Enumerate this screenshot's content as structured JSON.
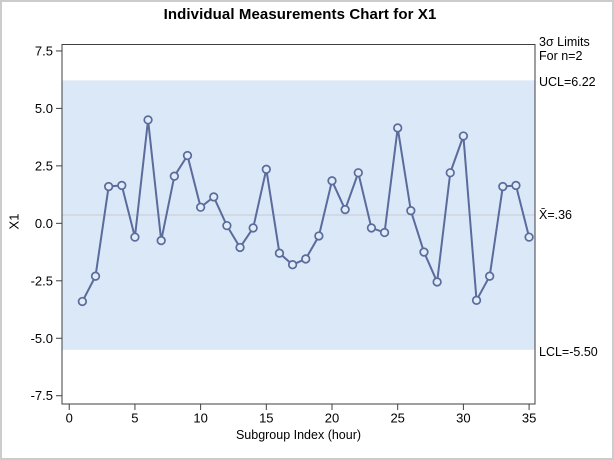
{
  "chart_data": {
    "type": "line",
    "title": "Individual Measurements Chart for X1",
    "xlabel": "Subgroup Index (hour)",
    "ylabel": "X1",
    "x": [
      1,
      2,
      3,
      4,
      5,
      6,
      7,
      8,
      9,
      10,
      11,
      12,
      13,
      14,
      15,
      16,
      17,
      18,
      19,
      20,
      21,
      22,
      23,
      24,
      25,
      26,
      27,
      28,
      29,
      30,
      31,
      32,
      33,
      34,
      35
    ],
    "values": [
      -3.4,
      -2.3,
      1.6,
      1.65,
      -0.6,
      4.5,
      -0.75,
      2.05,
      2.95,
      0.7,
      1.15,
      -0.1,
      -1.05,
      -0.2,
      2.35,
      -1.3,
      -1.8,
      -1.55,
      -0.55,
      1.85,
      0.6,
      2.2,
      -0.2,
      -0.4,
      4.15,
      0.55,
      -1.25,
      -2.55,
      2.2,
      3.8,
      -3.35,
      -2.3,
      1.6,
      1.65,
      -0.6
    ],
    "center_line": 0.36,
    "ucl": 6.22,
    "lcl": -5.5,
    "sigma_note": [
      "3σ Limits",
      "For n=2"
    ],
    "labels": {
      "ucl": "UCL=6.22",
      "mean": "X̄=.36",
      "lcl": "LCL=-5.50"
    },
    "yticks": [
      {
        "value": 7.5,
        "label": "7.5"
      },
      {
        "value": 5.0,
        "label": "5.0"
      },
      {
        "value": 2.5,
        "label": "2.5"
      },
      {
        "value": 0.0,
        "label": "0.0"
      },
      {
        "value": -2.5,
        "label": "-2.5"
      },
      {
        "value": -5.0,
        "label": "-5.0"
      },
      {
        "value": -7.5,
        "label": "-7.5"
      }
    ],
    "xticks": [
      {
        "value": 0,
        "label": "0"
      },
      {
        "value": 5,
        "label": "5"
      },
      {
        "value": 10,
        "label": "10"
      },
      {
        "value": 15,
        "label": "15"
      },
      {
        "value": 20,
        "label": "20"
      },
      {
        "value": 25,
        "label": "25"
      },
      {
        "value": 30,
        "label": "30"
      },
      {
        "value": 35,
        "label": "35"
      }
    ],
    "xlim": [
      -0.55,
      35.45
    ],
    "ylim": [
      -7.86,
      7.78
    ],
    "grid": false,
    "legend": "none",
    "colors": {
      "band": "#dbe8f8",
      "series": "#5a6b9c",
      "marker_fill": "#e2ecf8",
      "center_line": "#c7ccd1",
      "frame": "#3f3f3f",
      "text": "#000000",
      "figure_border": "#cccccc"
    }
  }
}
